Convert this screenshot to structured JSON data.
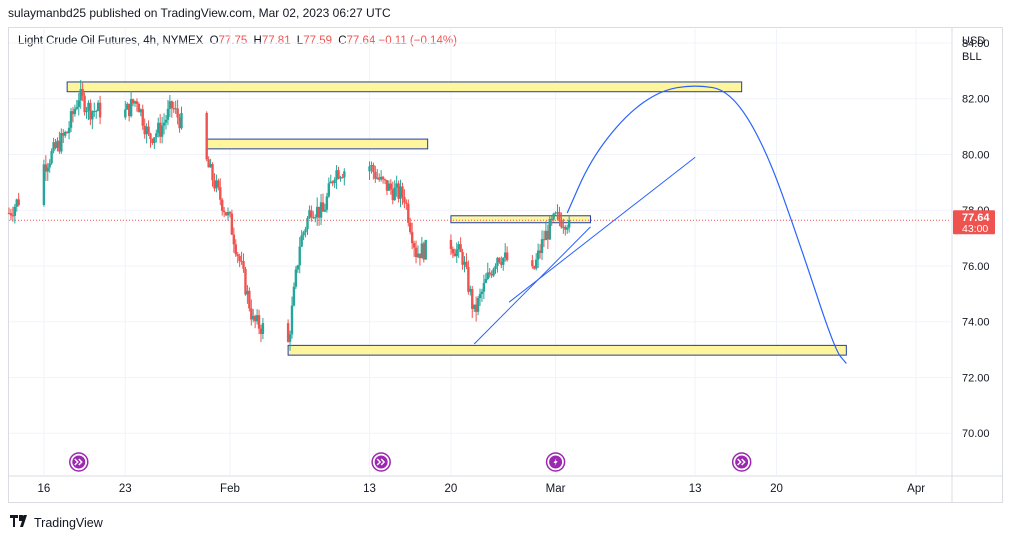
{
  "header": {
    "publish_line": "sulaymanbd25 published on TradingView.com, Mar 02, 2023 06:27 UTC"
  },
  "legend": {
    "symbol": "Light Crude Oil Futures, 4h, NYMEX",
    "open_key": "O",
    "open": "77.75",
    "high_key": "H",
    "high": "77.81",
    "low_key": "L",
    "low": "77.59",
    "close_key": "C",
    "close": "77.64",
    "change": "−0.11 (−0.14%)"
  },
  "price_scale": {
    "currency": "USD",
    "unit": "BLL"
  },
  "current_price": {
    "value": "77.64",
    "countdown": "43:00",
    "color": "#ef5350"
  },
  "footer": {
    "brand": "TradingView",
    "logo": "tradingview-logo"
  },
  "colors": {
    "up": "#26a69a",
    "down": "#ef5350",
    "zone_fill": "#fff59d",
    "zone_border": "#1e3fa8",
    "drawing": "#2962ff",
    "event_icon": "#9c27b0"
  },
  "events": [
    {
      "date": "Jan 19",
      "icon": "fast-forward-icon"
    },
    {
      "date": "Feb 14",
      "icon": "fast-forward-icon"
    },
    {
      "date": "Mar 01",
      "icon": "lightning-icon"
    },
    {
      "date": "Mar 17",
      "icon": "fast-forward-icon"
    }
  ],
  "chart_data": {
    "type": "candlestick",
    "timeframe": "4h",
    "y_range": [
      68.5,
      84.5
    ],
    "y_ticks": [
      "84.00",
      "82.00",
      "80.00",
      "78.00",
      "76.00",
      "74.00",
      "72.00",
      "70.00"
    ],
    "x_ticks": [
      "16",
      "23",
      "Feb",
      "13",
      "20",
      "Mar",
      "13",
      "20",
      "Apr"
    ],
    "x_range": [
      "2023-01-13",
      "2023-04-04"
    ],
    "price_anchors": [
      [
        "2023-01-13",
        77.9
      ],
      [
        "2023-01-16",
        79.6
      ],
      [
        "2023-01-18",
        80.8
      ],
      [
        "2023-01-19",
        82.1
      ],
      [
        "2023-01-20",
        81.6
      ],
      [
        "2023-01-23",
        81.5
      ],
      [
        "2023-01-24",
        82.0
      ],
      [
        "2023-01-25",
        80.6
      ],
      [
        "2023-01-26",
        80.9
      ],
      [
        "2023-01-27",
        81.7
      ],
      [
        "2023-01-30",
        79.7
      ],
      [
        "2023-01-31",
        78.6
      ],
      [
        "2023-02-01",
        77.6
      ],
      [
        "2023-02-02",
        75.9
      ],
      [
        "2023-02-03",
        74.0
      ],
      [
        "2023-02-06",
        73.2
      ],
      [
        "2023-02-07",
        76.8
      ],
      [
        "2023-02-08",
        78.1
      ],
      [
        "2023-02-09",
        77.9
      ],
      [
        "2023-02-10",
        79.4
      ],
      [
        "2023-02-13",
        79.6
      ],
      [
        "2023-02-14",
        79.0
      ],
      [
        "2023-02-15",
        78.7
      ],
      [
        "2023-02-16",
        78.5
      ],
      [
        "2023-02-17",
        76.5
      ],
      [
        "2023-02-20",
        76.8
      ],
      [
        "2023-02-21",
        76.3
      ],
      [
        "2023-02-22",
        74.3
      ],
      [
        "2023-02-23",
        75.4
      ],
      [
        "2023-02-24",
        76.4
      ],
      [
        "2023-02-27",
        75.7
      ],
      [
        "2023-02-28",
        77.0
      ],
      [
        "2023-03-01",
        77.7
      ],
      [
        "2023-03-02",
        77.64
      ]
    ],
    "last_price": 77.64,
    "zones": [
      {
        "from": "2023-01-18",
        "to": "2023-03-17",
        "low": 82.25,
        "high": 82.6
      },
      {
        "from": "2023-01-30",
        "to": "2023-02-18",
        "low": 80.2,
        "high": 80.55
      },
      {
        "from": "2023-02-20",
        "to": "2023-03-04",
        "low": 77.55,
        "high": 77.8
      },
      {
        "from": "2023-02-06",
        "to": "2023-03-26",
        "low": 72.8,
        "high": 73.15
      }
    ],
    "trendlines": [
      {
        "from": [
          "2023-02-22",
          73.2
        ],
        "to": [
          "2023-03-04",
          77.4
        ]
      },
      {
        "from": [
          "2023-02-25",
          74.7
        ],
        "to": [
          "2023-03-13",
          79.9
        ]
      }
    ],
    "projection_curve": [
      [
        "2023-03-02",
        77.9
      ],
      [
        "2023-03-04",
        79.8
      ],
      [
        "2023-03-07",
        81.4
      ],
      [
        "2023-03-10",
        82.3
      ],
      [
        "2023-03-13",
        82.5
      ],
      [
        "2023-03-16",
        82.3
      ],
      [
        "2023-03-19",
        80.3
      ],
      [
        "2023-03-22",
        76.8
      ],
      [
        "2023-03-25",
        73.0
      ],
      [
        "2023-03-26",
        72.5
      ]
    ]
  }
}
